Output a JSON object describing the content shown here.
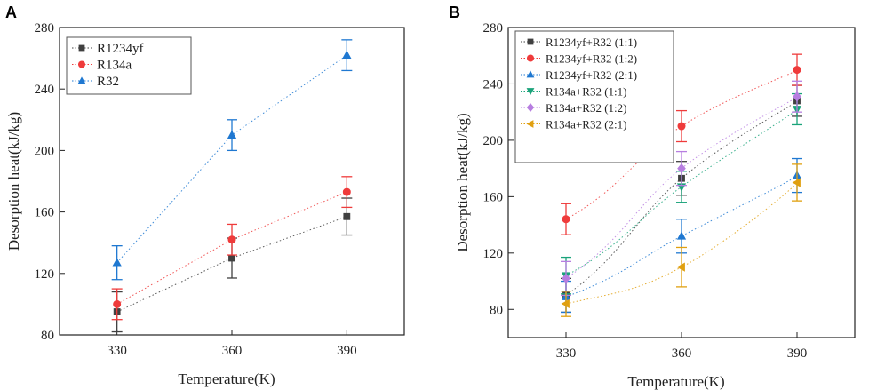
{
  "chart_data": [
    {
      "panel": "A",
      "type": "scatter",
      "xlabel": "Temperature(K)",
      "ylabel": "Desorption heat(kJ/kg)",
      "x": [
        330,
        360,
        390
      ],
      "xticks": [
        330,
        360,
        390
      ],
      "xlim": [
        315,
        405
      ],
      "yticks": [
        80,
        120,
        160,
        200,
        240,
        280
      ],
      "ylim": [
        80,
        280
      ],
      "grid": false,
      "legend_position": "top-left",
      "series": [
        {
          "name": "R1234yf",
          "marker": "square",
          "color": "#404040",
          "values": [
            95,
            130,
            157
          ],
          "errors": [
            13,
            13,
            12
          ]
        },
        {
          "name": "R134a",
          "marker": "circle",
          "color": "#ef3b3b",
          "values": [
            100,
            142,
            173
          ],
          "errors": [
            10,
            10,
            10
          ]
        },
        {
          "name": "R32",
          "marker": "triangle-up",
          "color": "#1f78d1",
          "values": [
            127,
            210,
            262
          ],
          "errors": [
            11,
            10,
            10
          ]
        }
      ]
    },
    {
      "panel": "B",
      "type": "scatter",
      "xlabel": "Temperature(K)",
      "ylabel": "Desorption heat(kJ/kg)",
      "x": [
        330,
        360,
        390
      ],
      "xticks": [
        330,
        360,
        390
      ],
      "xlim": [
        315,
        405
      ],
      "yticks": [
        80,
        120,
        160,
        200,
        240,
        280
      ],
      "ylim": [
        60,
        280
      ],
      "grid": false,
      "legend_position": "top-left",
      "series": [
        {
          "name": "R1234yf+R32 (1:1)",
          "marker": "square",
          "color": "#404040",
          "values": [
            90,
            173,
            228
          ],
          "errors": [
            12,
            12,
            11
          ]
        },
        {
          "name": "R1234yf+R32 (1:2)",
          "marker": "circle",
          "color": "#ef3b3b",
          "values": [
            144,
            210,
            250
          ],
          "errors": [
            11,
            11,
            11
          ]
        },
        {
          "name": "R1234yf+R32 (2:1)",
          "marker": "triangle-up",
          "color": "#1f78d1",
          "values": [
            89,
            132,
            175
          ],
          "errors": [
            11,
            12,
            12
          ]
        },
        {
          "name": "R134a+R32 (1:1)",
          "marker": "triangle-down",
          "color": "#1aa37a",
          "values": [
            104,
            167,
            222
          ],
          "errors": [
            13,
            11,
            11
          ]
        },
        {
          "name": "R134a+R32 (1:2)",
          "marker": "diamond",
          "color": "#b77ee0",
          "values": [
            102,
            180,
            231
          ],
          "errors": [
            12,
            12,
            11
          ]
        },
        {
          "name": "R134a+R32 (2:1)",
          "marker": "triangle-left",
          "color": "#e0a010",
          "values": [
            84,
            110,
            170
          ],
          "errors": [
            9,
            14,
            13
          ]
        }
      ]
    }
  ]
}
